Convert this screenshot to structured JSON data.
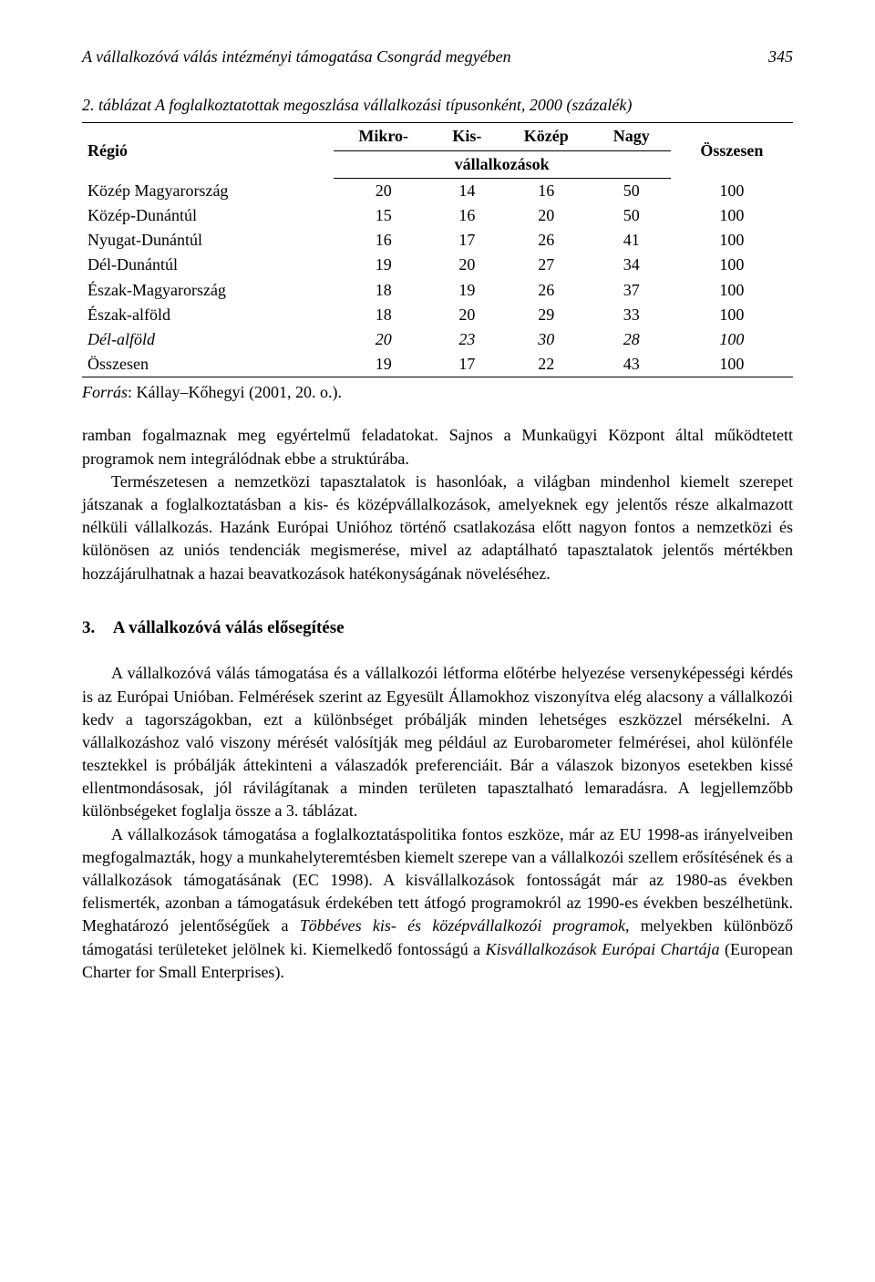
{
  "header": {
    "title": "A vállalkozóvá válás intézményi támogatása Csongrád megyében",
    "page_number": "345"
  },
  "table": {
    "caption": "2. táblázat A foglalkoztatottak megoszlása vállalkozási típusonként, 2000 (százalék)",
    "header_row1": {
      "col0": "Régió",
      "col1": "Mikro-",
      "col2": "Kis-",
      "col3": "Közép",
      "col4": "Nagy",
      "col5": "Összesen"
    },
    "header_row2": {
      "spanner": "vállalkozások"
    },
    "rows": [
      {
        "label": "Közép Magyarország",
        "v": [
          "20",
          "14",
          "16",
          "50",
          "100"
        ],
        "italic": false
      },
      {
        "label": "Közép-Dunántúl",
        "v": [
          "15",
          "16",
          "20",
          "50",
          "100"
        ],
        "italic": false
      },
      {
        "label": "Nyugat-Dunántúl",
        "v": [
          "16",
          "17",
          "26",
          "41",
          "100"
        ],
        "italic": false
      },
      {
        "label": "Dél-Dunántúl",
        "v": [
          "19",
          "20",
          "27",
          "34",
          "100"
        ],
        "italic": false
      },
      {
        "label": "Észak-Magyarország",
        "v": [
          "18",
          "19",
          "26",
          "37",
          "100"
        ],
        "italic": false
      },
      {
        "label": "Észak-alföld",
        "v": [
          "18",
          "20",
          "29",
          "33",
          "100"
        ],
        "italic": false
      },
      {
        "label": "Dél-alföld",
        "v": [
          "20",
          "23",
          "30",
          "28",
          "100"
        ],
        "italic": true
      },
      {
        "label": "Összesen",
        "v": [
          "19",
          "17",
          "22",
          "43",
          "100"
        ],
        "italic": false
      }
    ],
    "source_label": "Forrás",
    "source_text": ": Kállay–Kőhegyi (2001, 20. o.).",
    "style": {
      "font_family": "Times New Roman",
      "font_size_pt": 13,
      "rule_color": "#000000",
      "background": "#ffffff",
      "col_align": [
        "left",
        "center",
        "center",
        "center",
        "center",
        "center"
      ]
    }
  },
  "para1": "ramban fogalmaznak meg egyértelmű feladatokat. Sajnos a Munkaügyi Központ által működtetett programok nem integrálódnak ebbe a struktúrába.",
  "para2": "Természetesen a nemzetközi tapasztalatok is hasonlóak, a világban mindenhol kiemelt szerepet játszanak a foglalkoztatásban a kis- és középvállalkozások, amelyeknek egy jelentős része alkalmazott nélküli vállalkozás. Hazánk Európai Unióhoz történő csatlakozása előtt nagyon fontos a nemzetközi és különösen az uniós tendenciák megismerése, mivel az adaptálható tapasztalatok jelentős mértékben hozzájárulhatnak a hazai beavatkozások hatékonyságának növeléséhez.",
  "section": {
    "num": "3.",
    "title": "A vállalkozóvá válás elősegítése"
  },
  "para3": "A vállalkozóvá válás támogatása és a vállalkozói létforma előtérbe helyezése versenyképességi kérdés is az Európai Unióban. Felmérések szerint az Egyesült Államokhoz viszonyítva elég alacsony a vállalkozói kedv a tagországokban, ezt a különbséget próbálják minden lehetséges eszközzel mérsékelni. A vállalkozáshoz való viszony mérését valósítják meg például az Eurobarometer felmérései, ahol különféle tesztekkel is próbálják áttekinteni a válaszadók preferenciáit. Bár a válaszok bizonyos esetekben kissé ellentmondásosak, jól rávilágítanak a minden területen tapasztalható lemaradásra. A legjellemzőbb különbségeket foglalja össze a 3. táblázat.",
  "para4_parts": {
    "a": "A vállalkozások támogatása a foglalkoztatáspolitika fontos eszköze, már az EU 1998-as irányelveiben megfogalmazták, hogy a munkahelyteremtésben kiemelt szerepe van a vállalkozói szellem erősítésének és a vállalkozások támogatásának (EC 1998). A kisvállalkozások fontosságát már az 1980-as években felismerték, azonban a támogatásuk érdekében tett átfogó programokról az 1990-es években beszélhetünk. Meghatározó jelentőségűek a ",
    "b": "Többéves kis- és középvállalkozói programok",
    "c": ", melyekben különböző támogatási területeket jelölnek ki. Kiemelkedő fontosságú a ",
    "d": "Kisvállalkozások Európai Chartája",
    "e": " (European Charter for Small Enterprises)."
  }
}
